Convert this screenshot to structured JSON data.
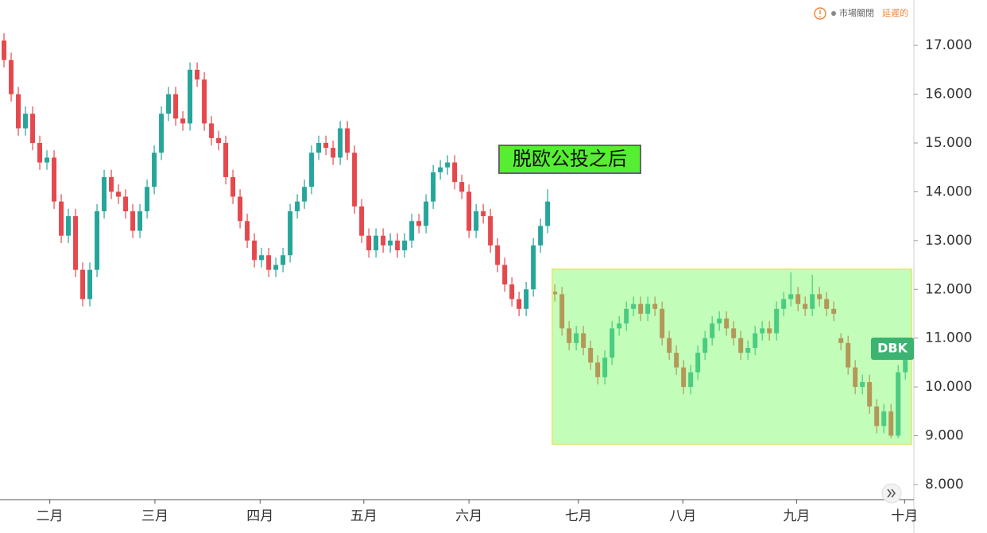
{
  "chart_data": {
    "type": "candlestick",
    "symbol": "DBK",
    "annotation": "脱欧公投之后",
    "status": "市場關閉",
    "delay": "延遲的",
    "up_color": "#26a69a",
    "down_color": "#e5484d",
    "open": [
      17.1,
      16.7,
      16.0,
      15.3,
      15.6,
      15.0,
      14.6,
      14.7,
      13.8,
      13.1,
      13.5,
      12.4,
      11.8,
      12.4,
      13.6,
      14.3,
      14.0,
      13.9,
      13.6,
      13.2,
      13.6,
      14.1,
      14.8,
      15.6,
      16.0,
      15.5,
      15.4,
      16.5,
      16.3,
      15.4,
      15.1,
      15.0,
      14.3,
      13.9,
      13.4,
      13.0,
      12.6,
      12.7,
      12.4,
      12.5,
      12.7,
      13.6,
      13.8,
      14.1,
      14.8,
      15.0,
      14.9,
      14.7,
      15.3,
      14.8,
      13.7,
      13.1,
      12.8,
      13.1,
      12.9,
      13.0,
      12.8,
      13.0,
      13.4,
      13.3,
      13.8,
      14.4,
      14.5,
      14.6,
      14.2,
      14.0,
      13.2,
      13.6,
      13.5,
      12.9,
      12.5,
      12.1,
      11.8,
      11.6,
      12.0,
      12.9,
      13.3,
      11.95,
      11.9,
      11.2,
      10.9,
      11.1,
      10.8,
      10.5,
      10.2,
      10.6,
      11.2,
      11.3,
      11.6,
      11.7,
      11.5,
      11.7,
      11.6,
      11.0,
      10.7,
      10.4,
      10.0,
      10.3,
      10.7,
      11.0,
      11.3,
      11.4,
      11.2,
      11.0,
      10.7,
      10.8,
      11.1,
      11.2,
      11.1,
      11.6,
      11.8,
      11.9,
      11.7,
      11.6,
      11.9,
      11.8,
      11.6,
      11.0,
      10.9,
      10.4,
      10.0,
      10.1,
      9.6,
      9.2,
      9.5,
      9.0,
      10.3
    ],
    "high": [
      17.25,
      16.85,
      16.15,
      15.75,
      15.75,
      15.15,
      14.85,
      14.85,
      13.95,
      13.65,
      13.65,
      12.55,
      12.55,
      13.75,
      14.45,
      14.45,
      14.15,
      14.05,
      13.75,
      13.75,
      14.25,
      14.95,
      15.75,
      16.15,
      16.15,
      15.65,
      16.65,
      16.65,
      16.45,
      15.55,
      15.25,
      15.15,
      14.45,
      14.05,
      13.55,
      13.15,
      12.85,
      12.85,
      12.65,
      12.85,
      13.75,
      13.95,
      14.25,
      14.95,
      15.15,
      15.15,
      15.05,
      15.45,
      15.45,
      14.95,
      13.85,
      13.25,
      13.25,
      13.25,
      13.15,
      13.15,
      13.15,
      13.55,
      13.55,
      13.95,
      14.55,
      14.65,
      14.75,
      14.75,
      14.35,
      14.15,
      13.75,
      13.75,
      13.65,
      13.05,
      12.65,
      12.25,
      11.95,
      12.15,
      13.05,
      13.45,
      14.05,
      12.1,
      12.05,
      11.35,
      11.25,
      11.25,
      10.95,
      10.65,
      10.75,
      11.35,
      11.45,
      11.75,
      11.85,
      11.85,
      11.85,
      11.85,
      11.75,
      11.15,
      10.85,
      10.55,
      10.45,
      10.85,
      11.15,
      11.45,
      11.55,
      11.55,
      11.35,
      11.15,
      10.95,
      11.25,
      11.35,
      11.35,
      11.75,
      11.95,
      12.35,
      12.05,
      11.85,
      12.3,
      12.05,
      11.95,
      11.75,
      11.1,
      11.05,
      10.55,
      10.25,
      10.25,
      9.75,
      9.65,
      9.65,
      10.45,
      10.75
    ],
    "low": [
      16.55,
      15.85,
      15.15,
      15.15,
      14.85,
      14.45,
      14.45,
      13.65,
      12.95,
      12.95,
      12.25,
      11.65,
      11.65,
      12.25,
      13.45,
      13.85,
      13.75,
      13.45,
      13.05,
      13.05,
      13.45,
      13.95,
      14.65,
      15.45,
      15.35,
      15.25,
      15.25,
      16.15,
      15.25,
      14.95,
      14.85,
      14.15,
      13.75,
      13.25,
      12.85,
      12.45,
      12.45,
      12.25,
      12.25,
      12.35,
      12.55,
      13.45,
      13.65,
      13.95,
      14.65,
      14.75,
      14.55,
      14.55,
      14.65,
      13.55,
      12.95,
      12.65,
      12.65,
      12.75,
      12.75,
      12.65,
      12.65,
      12.85,
      13.15,
      13.15,
      13.65,
      14.25,
      14.35,
      14.05,
      13.85,
      13.05,
      13.05,
      13.35,
      12.75,
      12.35,
      11.95,
      11.65,
      11.45,
      11.45,
      11.85,
      12.75,
      13.15,
      11.75,
      11.05,
      10.75,
      10.75,
      10.65,
      10.35,
      10.05,
      10.05,
      10.45,
      11.05,
      11.15,
      11.45,
      11.35,
      11.35,
      11.45,
      10.85,
      10.55,
      10.25,
      9.85,
      9.85,
      10.15,
      10.55,
      10.85,
      11.15,
      11.05,
      10.85,
      10.55,
      10.55,
      10.65,
      10.95,
      10.95,
      10.95,
      11.45,
      11.65,
      11.55,
      11.45,
      11.45,
      11.65,
      11.45,
      11.35,
      10.75,
      10.25,
      9.85,
      9.85,
      9.45,
      9.05,
      9.05,
      8.95,
      8.95,
      10.15
    ],
    "close": [
      16.7,
      16.0,
      15.3,
      15.6,
      15.0,
      14.6,
      14.7,
      13.8,
      13.1,
      13.5,
      12.4,
      11.8,
      12.4,
      13.6,
      14.3,
      14.0,
      13.9,
      13.6,
      13.2,
      13.6,
      14.1,
      14.8,
      15.6,
      16.0,
      15.5,
      15.4,
      16.5,
      16.3,
      15.4,
      15.1,
      15.0,
      14.3,
      13.9,
      13.4,
      13.0,
      12.6,
      12.7,
      12.4,
      12.5,
      12.7,
      13.6,
      13.8,
      14.1,
      14.8,
      15.0,
      14.9,
      14.7,
      15.3,
      14.8,
      13.7,
      13.1,
      12.8,
      13.1,
      12.9,
      13.0,
      12.8,
      13.0,
      13.4,
      13.3,
      13.8,
      14.4,
      14.5,
      14.6,
      14.2,
      14.0,
      13.2,
      13.6,
      13.5,
      12.9,
      12.5,
      12.1,
      11.8,
      11.6,
      12.0,
      12.9,
      13.3,
      13.8,
      11.9,
      11.2,
      10.9,
      11.1,
      10.8,
      10.5,
      10.2,
      10.6,
      11.2,
      11.3,
      11.6,
      11.7,
      11.5,
      11.7,
      11.6,
      11.0,
      10.7,
      10.4,
      10.0,
      10.3,
      10.7,
      11.0,
      11.3,
      11.4,
      11.2,
      11.0,
      10.7,
      10.8,
      11.1,
      11.2,
      11.1,
      11.6,
      11.8,
      11.9,
      11.7,
      11.6,
      11.9,
      11.8,
      11.6,
      11.5,
      10.9,
      10.4,
      10.0,
      10.1,
      9.6,
      9.2,
      9.5,
      9.0,
      10.3,
      10.6
    ],
    "xlim": [
      -0.56,
      127.2
    ],
    "xticks": [
      {
        "value": 6.4,
        "label": "二月"
      },
      {
        "value": 21.1,
        "label": "三月"
      },
      {
        "value": 35.8,
        "label": "四月"
      },
      {
        "value": 50.3,
        "label": "五月"
      },
      {
        "value": 65,
        "label": "六月"
      },
      {
        "value": 80.3,
        "label": "七月"
      },
      {
        "value": 94.9,
        "label": "八月"
      },
      {
        "value": 110.8,
        "label": "九月"
      },
      {
        "value": 125.9,
        "label": "十月"
      }
    ],
    "ylim": [
      7.69,
      17.93
    ],
    "yticks": [
      {
        "value": 8,
        "label": "8.000"
      },
      {
        "value": 9,
        "label": "9.000"
      },
      {
        "value": 10,
        "label": "10.000"
      },
      {
        "value": 11,
        "label": "11.000"
      },
      {
        "value": 12,
        "label": "12.000"
      },
      {
        "value": 13,
        "label": "13.000"
      },
      {
        "value": 14,
        "label": "14.000"
      },
      {
        "value": 15,
        "label": "15.000"
      },
      {
        "value": 16,
        "label": "16.000"
      },
      {
        "value": 17,
        "label": "17.000"
      }
    ]
  }
}
